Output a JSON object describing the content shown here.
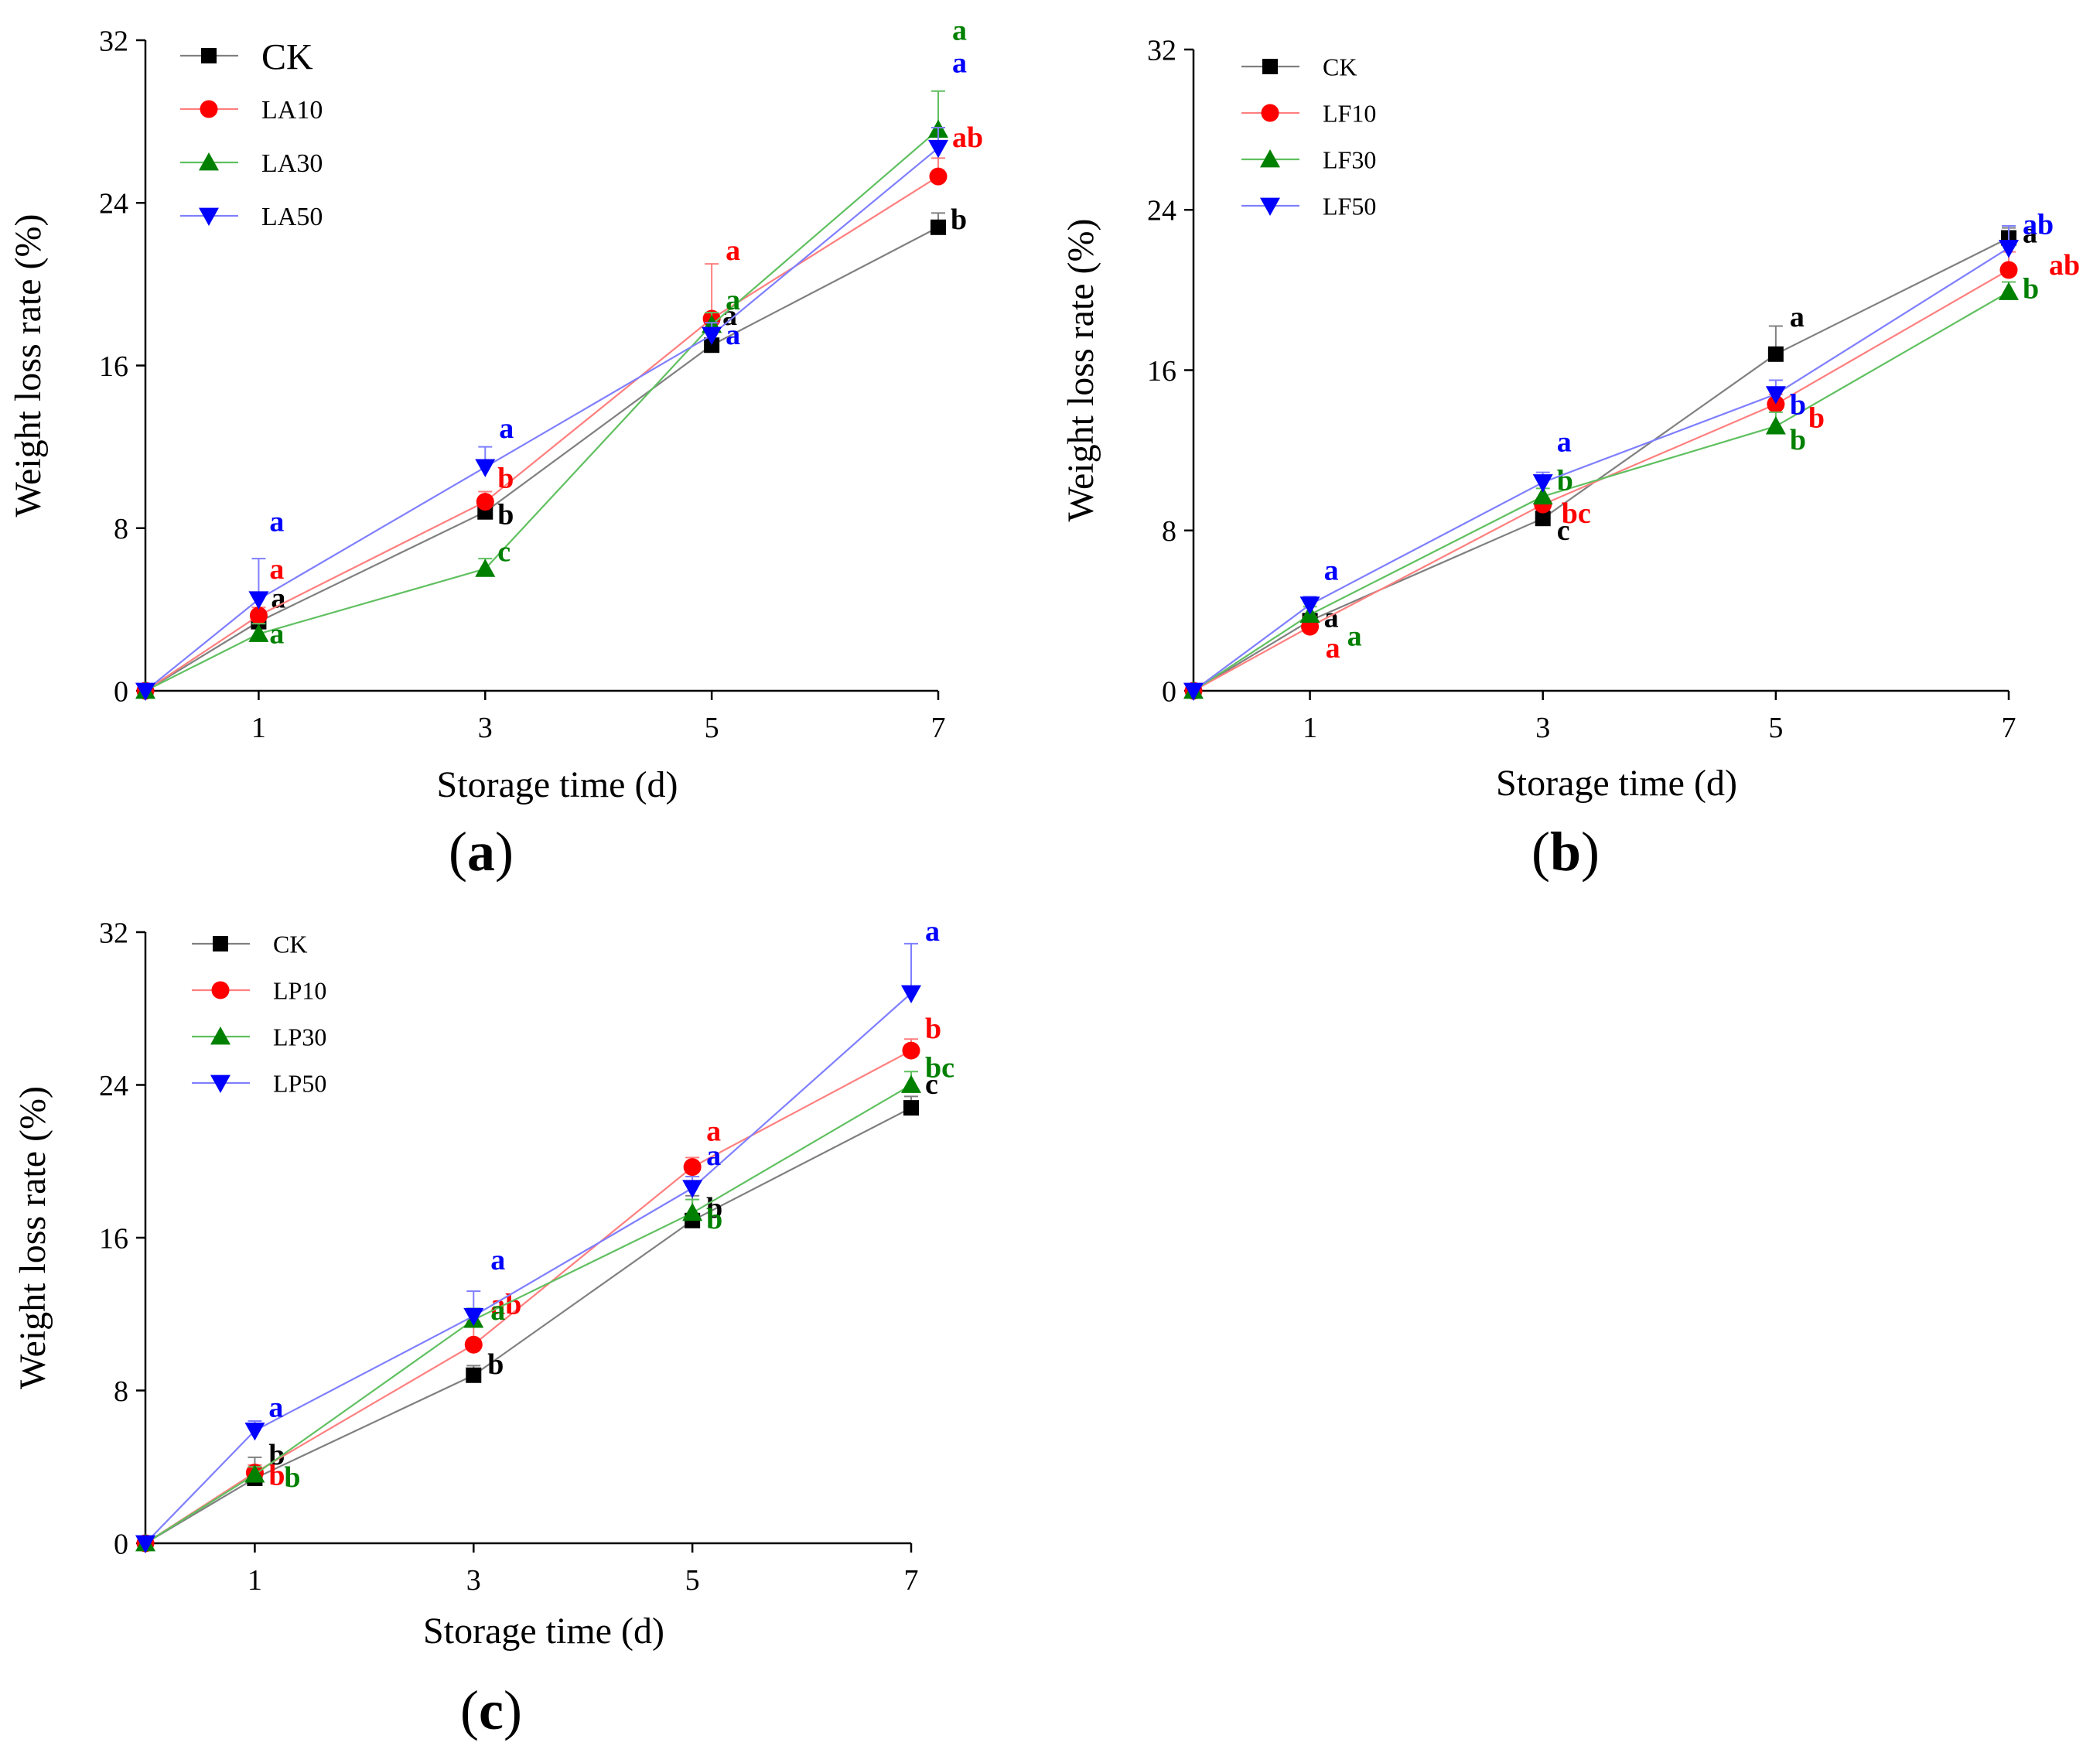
{
  "colors": {
    "CK": "#000000",
    "T10": "#ff0000",
    "T30": "#008000",
    "T50": "#0000ff",
    "ck_line": "#808080",
    "t10_line": "#ff7f7f",
    "t30_line": "#60c060",
    "t50_line": "#7f7fff"
  },
  "chart_data": [
    {
      "type": "line",
      "panel_label": "a",
      "title": "",
      "xlabel": "Storage time (d)",
      "ylabel": "Weight loss rate (%)",
      "xlim": [
        0,
        7
      ],
      "ylim": [
        0,
        32
      ],
      "xticks": [
        1,
        3,
        5,
        7
      ],
      "yticks": [
        0,
        8,
        16,
        24,
        32
      ],
      "x": [
        0,
        1,
        3,
        5,
        7
      ],
      "legend": [
        "CK",
        "LA10",
        "LA30",
        "LA50"
      ],
      "series": [
        {
          "name": "CK",
          "marker": "square",
          "values": [
            0,
            3.4,
            8.8,
            17.0,
            22.8
          ],
          "errors": [
            0,
            0.5,
            0.4,
            1.5,
            0.7
          ],
          "letters": [
            "",
            "a",
            "b",
            "a",
            "b"
          ]
        },
        {
          "name": "LA10",
          "marker": "circle",
          "values": [
            0,
            3.7,
            9.3,
            18.3,
            25.3
          ],
          "errors": [
            0,
            0.4,
            0.5,
            2.7,
            0.9
          ],
          "letters": [
            "",
            "a",
            "b",
            "a",
            "ab"
          ]
        },
        {
          "name": "LA30",
          "marker": "triangle-up",
          "values": [
            0,
            2.8,
            6.0,
            18.0,
            27.6
          ],
          "errors": [
            0,
            0.5,
            0.5,
            0.6,
            1.9
          ],
          "letters": [
            "",
            "a",
            "c",
            "a",
            "a"
          ]
        },
        {
          "name": "LA50",
          "marker": "triangle-down",
          "values": [
            0,
            4.5,
            11.0,
            17.5,
            26.7
          ],
          "errors": [
            0,
            2.0,
            1.0,
            0.6,
            1.0
          ],
          "letters": [
            "",
            "a",
            "a",
            "a",
            "a"
          ]
        }
      ]
    },
    {
      "type": "line",
      "panel_label": "b",
      "title": "",
      "xlabel": "Storage time (d)",
      "ylabel": "Weight loss rate (%)",
      "xlim": [
        0,
        7
      ],
      "ylim": [
        0,
        32
      ],
      "xticks": [
        1,
        3,
        5,
        7
      ],
      "yticks": [
        0,
        8,
        16,
        24,
        32
      ],
      "x": [
        0,
        1,
        3,
        5,
        7
      ],
      "legend": [
        "CK",
        "LF10",
        "LF30",
        "LF50"
      ],
      "series": [
        {
          "name": "CK",
          "marker": "square",
          "values": [
            0,
            3.5,
            8.6,
            16.8,
            22.6
          ],
          "errors": [
            0,
            1.0,
            0.4,
            1.4,
            0.5
          ],
          "letters": [
            "",
            "a",
            "c",
            "a",
            "a"
          ]
        },
        {
          "name": "LF10",
          "marker": "circle",
          "values": [
            0,
            3.2,
            9.3,
            14.3,
            21.0
          ],
          "errors": [
            0,
            0.5,
            0.3,
            0.5,
            0.9
          ],
          "letters": [
            "",
            "a",
            "bc",
            "b",
            "ab"
          ]
        },
        {
          "name": "LF30",
          "marker": "triangle-up",
          "values": [
            0,
            3.8,
            9.7,
            13.2,
            19.9
          ],
          "errors": [
            0,
            0.4,
            0.4,
            0.7,
            0.5
          ],
          "letters": [
            "",
            "a",
            "b",
            "b",
            "b"
          ]
        },
        {
          "name": "LF50",
          "marker": "triangle-down",
          "values": [
            0,
            4.3,
            10.4,
            14.8,
            22.1
          ],
          "errors": [
            0,
            0.4,
            0.5,
            0.7,
            1.1
          ],
          "letters": [
            "",
            "a",
            "a",
            "b",
            "ab"
          ]
        }
      ]
    },
    {
      "type": "line",
      "panel_label": "c",
      "title": "",
      "xlabel": "Storage time (d)",
      "ylabel": "Weight loss rate (%)",
      "xlim": [
        0,
        7
      ],
      "ylim": [
        0,
        32
      ],
      "xticks": [
        1,
        3,
        5,
        7
      ],
      "yticks": [
        0,
        8,
        16,
        24,
        32
      ],
      "x": [
        0,
        1,
        3,
        5,
        7
      ],
      "legend": [
        "CK",
        "LP10",
        "LP30",
        "LP50"
      ],
      "series": [
        {
          "name": "CK",
          "marker": "square",
          "values": [
            0,
            3.4,
            8.8,
            16.9,
            22.8
          ],
          "errors": [
            0,
            1.1,
            0.5,
            1.3,
            0.6
          ],
          "letters": [
            "",
            "b",
            "b",
            "b",
            "c"
          ]
        },
        {
          "name": "LP10",
          "marker": "circle",
          "values": [
            0,
            3.7,
            10.4,
            19.7,
            25.8
          ],
          "errors": [
            0,
            0.4,
            1.2,
            0.5,
            0.6
          ],
          "letters": [
            "",
            "b",
            "ab",
            "a",
            "b"
          ]
        },
        {
          "name": "LP30",
          "marker": "triangle-up",
          "values": [
            0,
            3.6,
            11.7,
            17.3,
            24.0
          ],
          "errors": [
            0,
            0.4,
            0.6,
            0.7,
            0.7
          ],
          "letters": [
            "",
            "b",
            "a",
            "b",
            "bc"
          ]
        },
        {
          "name": "LP50",
          "marker": "triangle-down",
          "values": [
            0,
            5.9,
            11.9,
            18.6,
            28.8
          ],
          "errors": [
            0,
            0.5,
            1.3,
            0.6,
            2.6
          ],
          "letters": [
            "",
            "a",
            "a",
            "a",
            "a"
          ]
        }
      ]
    }
  ],
  "panel_letters": {
    "a": "a",
    "b": "b",
    "c": "c",
    "open": "(",
    "close": ")"
  }
}
